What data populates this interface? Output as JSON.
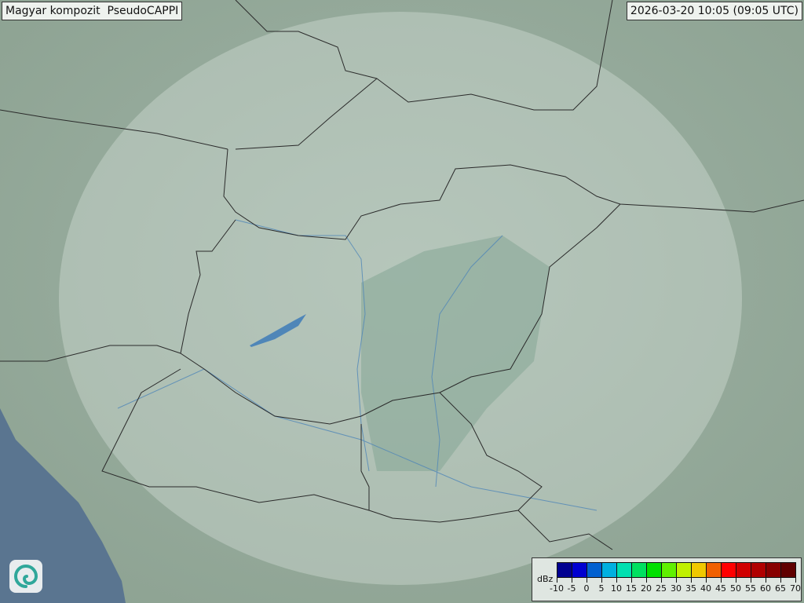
{
  "header": {
    "title": "Magyar kompozit  PseudoCAPPI",
    "timestamp": "2026-03-20 10:05 (09:05 UTC)"
  },
  "map": {
    "background_color": "#8fa69a",
    "sea_color": "#5a7590",
    "radar_coverage_color": "#dfe8e2",
    "border_color": "#2a2a2a",
    "river_color": "#4f86b8"
  },
  "legend": {
    "unit": "dBz",
    "ticks": [
      "-10",
      "-5",
      "0",
      "5",
      "10",
      "15",
      "20",
      "25",
      "30",
      "35",
      "40",
      "45",
      "50",
      "55",
      "60",
      "65",
      "70"
    ],
    "colors": [
      "#000090",
      "#0000d0",
      "#0060d0",
      "#00b0e0",
      "#00e0b0",
      "#00e060",
      "#00e000",
      "#60f000",
      "#c0f000",
      "#f0c800",
      "#f06000",
      "#ff0000",
      "#d00000",
      "#b00000",
      "#880000",
      "#600000"
    ]
  },
  "logo": {
    "icon": "swirl-logo-icon"
  }
}
